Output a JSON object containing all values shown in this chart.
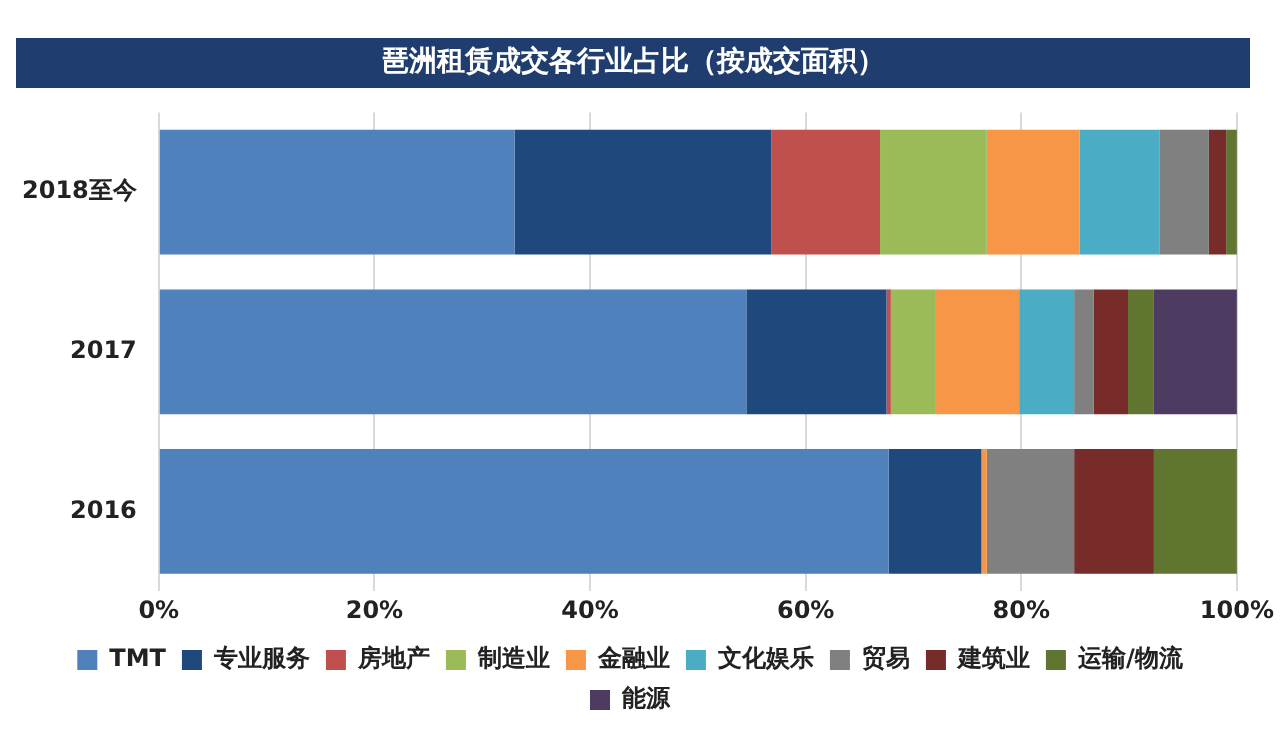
{
  "chart_data": {
    "type": "bar",
    "orientation": "horizontal",
    "stacked": true,
    "title": "琶洲租赁成交各行业占比（按成交面积）",
    "categories": [
      "2018至今",
      "2017",
      "2016"
    ],
    "series": [
      {
        "name": "TMT",
        "color": "#4f81bd",
        "values": [
          33.0,
          54.5,
          67.7
        ]
      },
      {
        "name": "专业服务",
        "color": "#1f497d",
        "values": [
          23.8,
          13.0,
          8.6
        ]
      },
      {
        "name": "房地产",
        "color": "#c0504d",
        "values": [
          10.1,
          0.4,
          0
        ]
      },
      {
        "name": "制造业",
        "color": "#9bbb59",
        "values": [
          9.9,
          4.1,
          0
        ]
      },
      {
        "name": "金融业",
        "color": "#f79646",
        "values": [
          8.6,
          7.8,
          0.5
        ]
      },
      {
        "name": "文化娱乐",
        "color": "#4bacc6",
        "values": [
          7.4,
          5.1,
          0
        ]
      },
      {
        "name": "贸易",
        "color": "#808080",
        "values": [
          4.6,
          1.8,
          8.1
        ]
      },
      {
        "name": "建筑业",
        "color": "#772c2a",
        "values": [
          1.6,
          3.2,
          7.4
        ]
      },
      {
        "name": "运输/物流",
        "color": "#5f7530",
        "values": [
          1.0,
          2.4,
          7.7
        ]
      },
      {
        "name": "能源",
        "color": "#4d3b62",
        "values": [
          0,
          7.7,
          0
        ]
      }
    ],
    "xlim": [
      0,
      100
    ],
    "xticks": [
      {
        "value": 0,
        "label": "0%"
      },
      {
        "value": 20,
        "label": "20%"
      },
      {
        "value": 40,
        "label": "40%"
      },
      {
        "value": 60,
        "label": "60%"
      },
      {
        "value": 80,
        "label": "80%"
      },
      {
        "value": 100,
        "label": "100%"
      }
    ],
    "grid": "x",
    "legend": "bottom"
  }
}
